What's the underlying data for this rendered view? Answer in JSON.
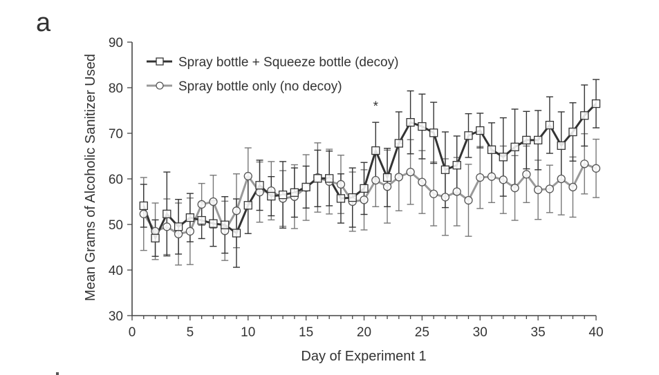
{
  "chart_data": {
    "type": "line",
    "panel_label": "a",
    "title": "",
    "xlabel": "Day of Experiment 1",
    "ylabel": "Mean Grams of Alcoholic Sanitizer Used",
    "xlim": [
      0,
      40
    ],
    "ylim": [
      30,
      90
    ],
    "xticks": [
      "0",
      "5",
      "10",
      "15",
      "20",
      "25",
      "30",
      "35",
      "40"
    ],
    "yticks": [
      "30",
      "40",
      "50",
      "60",
      "70",
      "80",
      "90"
    ],
    "grid": false,
    "legend_position": "top-left",
    "annotations": [
      {
        "text": "*",
        "x": 21,
        "y": 76.5
      }
    ],
    "x": [
      1,
      2,
      3,
      4,
      5,
      6,
      7,
      8,
      9,
      10,
      11,
      12,
      13,
      14,
      15,
      16,
      17,
      18,
      19,
      20,
      21,
      22,
      23,
      24,
      25,
      26,
      27,
      28,
      29,
      30,
      31,
      32,
      33,
      34,
      35,
      36,
      37,
      38,
      39,
      40
    ],
    "series": [
      {
        "name": "Spray bottle + Squeeze bottle (decoy)",
        "marker": "square",
        "color": "#333333",
        "values": [
          54.1,
          47.0,
          52.3,
          49.5,
          51.5,
          50.9,
          50.2,
          49.9,
          48.1,
          54.2,
          58.6,
          56.2,
          56.5,
          57.0,
          58.2,
          60.1,
          60.1,
          55.7,
          55.9,
          57.9,
          66.2,
          60.3,
          67.8,
          72.4,
          71.5,
          70.1,
          62.0,
          63.0,
          69.5,
          70.6,
          66.4,
          64.8,
          67.0,
          68.5,
          68.5,
          71.8,
          67.3,
          70.3,
          73.9,
          76.5
        ],
        "error": [
          4.7,
          4.0,
          9.2,
          6.0,
          5.3,
          4.0,
          5.0,
          6.2,
          7.5,
          6.2,
          5.5,
          4.3,
          7.3,
          5.4,
          4.6,
          6.2,
          6.0,
          5.4,
          6.5,
          5.7,
          6.2,
          6.4,
          6.9,
          6.9,
          7.1,
          6.7,
          8.3,
          6.4,
          4.8,
          3.8,
          5.9,
          8.6,
          8.3,
          6.3,
          6.5,
          6.2,
          7.4,
          6.4,
          6.7,
          5.3
        ]
      },
      {
        "name": "Spray bottle only (no decoy)",
        "marker": "circle",
        "color": "#999999",
        "values": [
          52.3,
          48.5,
          49.5,
          47.9,
          48.5,
          54.4,
          55.0,
          48.6,
          53.0,
          60.6,
          57.1,
          57.4,
          55.7,
          56.1,
          58.1,
          60.3,
          59.4,
          58.8,
          55.0,
          55.4,
          59.7,
          58.3,
          60.4,
          61.5,
          59.3,
          56.7,
          56.0,
          57.2,
          55.3,
          60.3,
          60.5,
          59.8,
          58.0,
          61.0,
          57.6,
          57.8,
          60.0,
          58.2,
          63.3,
          62.3
        ],
        "error": [
          8.0,
          6.2,
          6.1,
          6.8,
          7.3,
          4.6,
          5.8,
          6.5,
          8.1,
          6.2,
          6.6,
          6.4,
          6.1,
          7.0,
          7.2,
          7.6,
          7.1,
          6.4,
          6.5,
          6.6,
          5.8,
          8.0,
          7.4,
          7.1,
          6.9,
          7.0,
          8.4,
          7.5,
          7.9,
          6.8,
          5.7,
          7.4,
          7.1,
          6.2,
          6.5,
          5.2,
          7.9,
          6.6,
          6.6,
          6.4
        ]
      }
    ]
  }
}
